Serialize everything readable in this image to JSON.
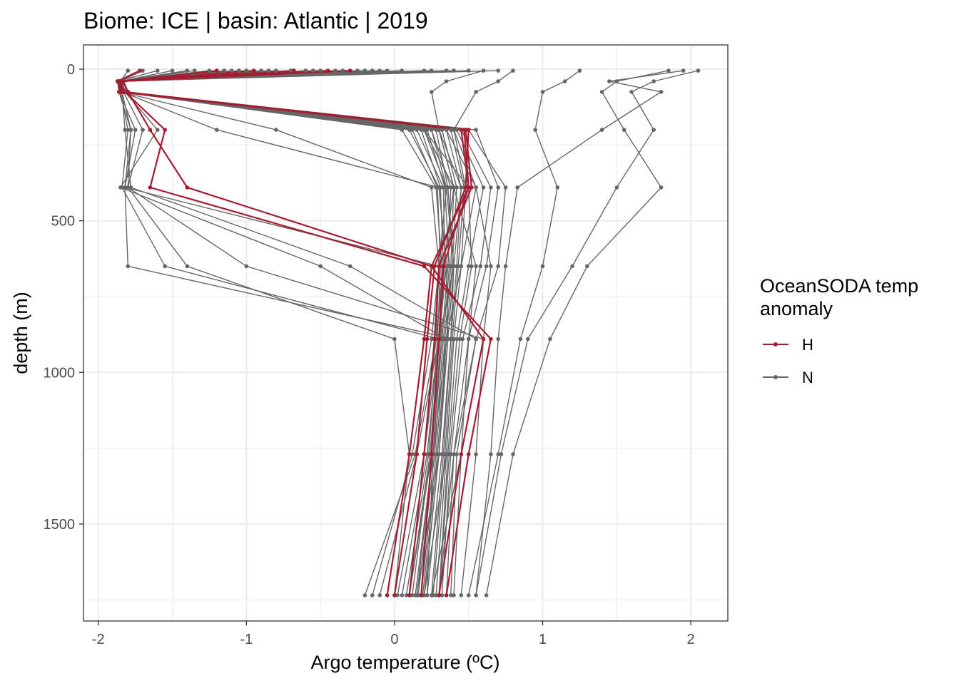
{
  "chart_data": {
    "type": "line",
    "title": "Biome: ICE | basin: Atlantic  |  2019",
    "xlabel": "Argo temperature (ºC)",
    "ylabel": "depth (m)",
    "xlim": [
      -2.1,
      2.25
    ],
    "ylim": [
      -80,
      1820
    ],
    "y_reversed": true,
    "x_ticks": [
      -2,
      -1,
      0,
      1,
      2
    ],
    "x_tick_labels": [
      "-2",
      "-1",
      "0",
      "1",
      "2"
    ],
    "y_ticks": [
      0,
      500,
      1000,
      1500
    ],
    "y_tick_labels": [
      "0",
      "500",
      "1000",
      "1500"
    ],
    "grid": true,
    "legend": {
      "title_lines": [
        "OceanSODA temp",
        "anomaly"
      ],
      "position": "right",
      "entries": [
        {
          "key": "H",
          "label": "H",
          "color": "#a51c30"
        },
        {
          "key": "N",
          "label": "N",
          "color": "#666666"
        }
      ]
    },
    "depth_levels": [
      5,
      40,
      75,
      200,
      390,
      650,
      890,
      1270,
      1735
    ],
    "series": [
      {
        "group": "H",
        "x": [
          -1.72,
          -1.87,
          -1.85,
          0.45,
          0.5,
          0.33,
          0.3,
          0.25,
          0.18
        ]
      },
      {
        "group": "H",
        "x": [
          -0.3,
          -1.86,
          -1.84,
          0.48,
          0.52,
          0.3,
          0.27,
          0.2,
          0.1
        ]
      },
      {
        "group": "H",
        "x": [
          -0.68,
          -1.85,
          -1.83,
          0.5,
          0.48,
          0.27,
          0.22,
          0.15,
          0.0
        ]
      },
      {
        "group": "H",
        "x": [
          -1.2,
          -1.84,
          -1.86,
          0.47,
          0.5,
          0.25,
          0.2,
          0.1,
          -0.05
        ]
      },
      {
        "group": "H",
        "x": [
          -0.95,
          -1.83,
          -1.8,
          -1.65,
          -1.4,
          0.25,
          0.6,
          0.45,
          0.3
        ]
      },
      {
        "group": "H",
        "x": [
          -0.45,
          -1.86,
          -1.82,
          -1.55,
          -1.65,
          0.2,
          0.65,
          0.5,
          0.35
        ]
      },
      {
        "group": "N",
        "x": [
          1.95,
          1.45,
          1.8,
          1.4,
          0.83,
          0.75,
          0.7,
          0.65,
          0.55
        ]
      },
      {
        "group": "N",
        "x": [
          1.85,
          1.5,
          1.4,
          1.55,
          1.8,
          1.3,
          1.05,
          0.8,
          0.62
        ]
      },
      {
        "group": "N",
        "x": [
          2.05,
          1.75,
          1.6,
          1.75,
          1.5,
          1.2,
          0.9,
          0.72,
          0.55
        ]
      },
      {
        "group": "N",
        "x": [
          1.25,
          1.15,
          1.0,
          0.95,
          1.1,
          1.0,
          0.85,
          0.7,
          0.5
        ]
      },
      {
        "group": "N",
        "x": [
          0.8,
          0.7,
          0.55,
          0.4,
          0.55,
          0.65,
          0.6,
          0.55,
          0.45
        ]
      },
      {
        "group": "N",
        "x": [
          0.6,
          0.35,
          0.25,
          0.3,
          0.4,
          0.55,
          0.5,
          0.45,
          0.4
        ]
      },
      {
        "group": "N",
        "x": [
          -1.4,
          -1.86,
          -1.85,
          -1.8,
          -1.84,
          -1.55,
          0.3,
          0.2,
          0.1
        ]
      },
      {
        "group": "N",
        "x": [
          -1.1,
          -1.85,
          -1.84,
          -1.78,
          -1.8,
          -1.4,
          0.0,
          0.1,
          0.0
        ]
      },
      {
        "group": "N",
        "x": [
          -0.5,
          -1.87,
          -1.86,
          -1.75,
          -1.82,
          -1.8,
          0.4,
          0.35,
          0.2
        ]
      },
      {
        "group": "N",
        "x": [
          -1.0,
          -1.86,
          -1.83,
          -1.7,
          -1.8,
          -1.0,
          0.6,
          0.45,
          0.25
        ]
      },
      {
        "group": "N",
        "x": [
          -0.2,
          -1.84,
          -1.82,
          -1.6,
          -1.85,
          -0.5,
          0.35,
          0.3,
          0.15
        ]
      },
      {
        "group": "N",
        "x": [
          -1.5,
          -1.85,
          -1.84,
          -1.82,
          -1.78,
          -0.3,
          0.55,
          0.4,
          0.3
        ]
      },
      {
        "group": "N",
        "x": [
          -0.1,
          -1.83,
          -1.8,
          0.2,
          0.35,
          0.4,
          0.38,
          0.33,
          0.25
        ]
      },
      {
        "group": "N",
        "x": [
          -1.8,
          -1.85,
          -1.86,
          0.1,
          0.3,
          0.35,
          0.36,
          0.3,
          0.2
        ]
      },
      {
        "group": "N",
        "x": [
          -0.9,
          -1.86,
          -1.85,
          0.3,
          0.4,
          0.38,
          0.34,
          0.28,
          0.18
        ]
      },
      {
        "group": "N",
        "x": [
          0.2,
          -1.84,
          -1.82,
          0.35,
          0.45,
          0.42,
          0.38,
          0.32,
          0.22
        ]
      },
      {
        "group": "N",
        "x": [
          -1.6,
          -1.87,
          -1.86,
          0.25,
          0.38,
          0.36,
          0.32,
          0.26,
          0.15
        ]
      },
      {
        "group": "N",
        "x": [
          -0.7,
          -1.85,
          -1.84,
          0.15,
          0.33,
          0.34,
          0.3,
          0.24,
          0.12
        ]
      },
      {
        "group": "N",
        "x": [
          -0.35,
          -1.83,
          -1.81,
          0.4,
          0.48,
          0.45,
          0.4,
          0.35,
          0.28
        ]
      },
      {
        "group": "N",
        "x": [
          -1.25,
          -1.86,
          -1.85,
          0.05,
          0.28,
          0.32,
          0.3,
          0.25,
          0.1
        ]
      },
      {
        "group": "N",
        "x": [
          0.4,
          -1.84,
          -1.83,
          0.28,
          0.36,
          0.4,
          0.36,
          0.3,
          0.2
        ]
      },
      {
        "group": "N",
        "x": [
          -0.8,
          -1.86,
          -1.84,
          0.22,
          0.34,
          0.37,
          0.33,
          0.27,
          0.16
        ]
      },
      {
        "group": "N",
        "x": [
          -1.7,
          -1.85,
          -1.86,
          0.32,
          0.42,
          0.39,
          0.35,
          0.29,
          0.19
        ]
      },
      {
        "group": "N",
        "x": [
          -0.25,
          -1.87,
          -1.82,
          0.18,
          0.31,
          0.33,
          0.31,
          0.26,
          0.14
        ]
      },
      {
        "group": "N",
        "x": [
          0.05,
          -1.84,
          -1.83,
          0.38,
          0.47,
          0.43,
          0.39,
          0.34,
          0.26
        ]
      },
      {
        "group": "N",
        "x": [
          -1.35,
          -1.85,
          -1.85,
          0.12,
          0.29,
          0.31,
          0.29,
          0.23,
          0.08
        ]
      },
      {
        "group": "N",
        "x": [
          -0.6,
          -1.86,
          -1.84,
          0.42,
          0.6,
          0.5,
          0.42,
          0.36,
          0.3
        ]
      },
      {
        "group": "N",
        "x": [
          -0.15,
          -1.84,
          -1.82,
          0.55,
          0.7,
          0.62,
          0.5,
          0.4,
          0.35
        ]
      },
      {
        "group": "N",
        "x": [
          -1.05,
          -1.85,
          -1.83,
          0.45,
          0.65,
          0.58,
          0.46,
          0.38,
          0.32
        ]
      },
      {
        "group": "N",
        "x": [
          0.25,
          -1.86,
          -1.81,
          0.5,
          0.75,
          0.7,
          0.55,
          0.42,
          0.38
        ]
      },
      {
        "group": "N",
        "x": [
          -0.4,
          -1.85,
          -1.84,
          -1.2,
          0.3,
          0.35,
          0.3,
          0.22,
          0.05
        ]
      },
      {
        "group": "N",
        "x": [
          -1.15,
          -1.86,
          -1.85,
          -0.8,
          0.25,
          0.3,
          0.28,
          0.2,
          0.02
        ]
      },
      {
        "group": "N",
        "x": [
          0.5,
          -1.84,
          -1.8,
          0.2,
          0.5,
          0.52,
          0.44,
          0.37,
          0.3
        ]
      },
      {
        "group": "N",
        "x": [
          -0.55,
          -1.87,
          -1.86,
          -1.78,
          -1.82,
          0.3,
          0.32,
          0.24,
          0.1
        ]
      },
      {
        "group": "N",
        "x": [
          0.35,
          -1.85,
          -1.84,
          0.3,
          0.45,
          0.4,
          0.3,
          0.15,
          -0.1
        ]
      },
      {
        "group": "N",
        "x": [
          -0.05,
          -1.86,
          -1.85,
          0.25,
          0.35,
          0.3,
          0.25,
          0.12,
          -0.15
        ]
      },
      {
        "group": "N",
        "x": [
          -0.85,
          -1.84,
          -1.83,
          0.2,
          0.4,
          0.33,
          0.28,
          0.14,
          -0.2
        ]
      },
      {
        "group": "N",
        "x": [
          0.7,
          -1.85,
          -1.82,
          0.35,
          0.55,
          0.45,
          0.35,
          0.26,
          0.22
        ]
      }
    ]
  }
}
